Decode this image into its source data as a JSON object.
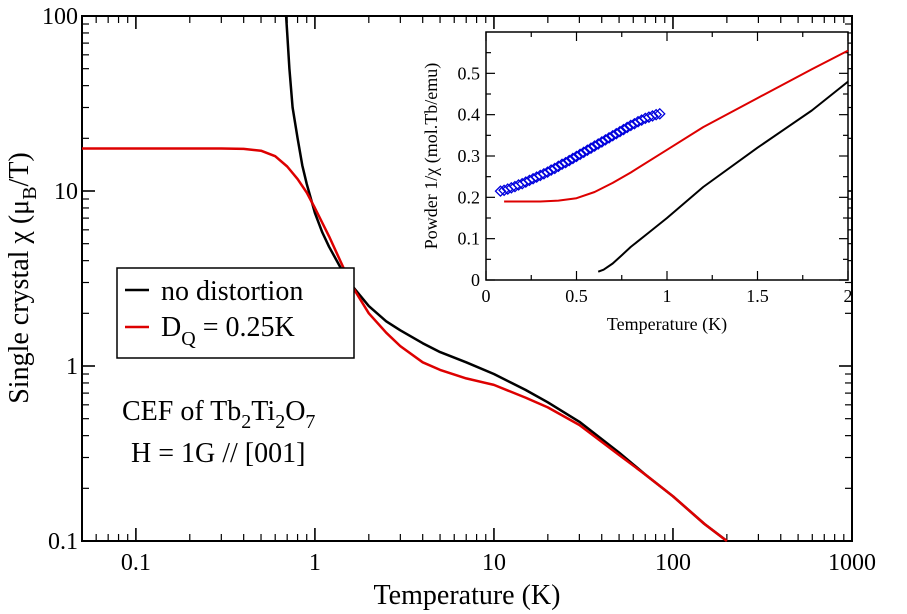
{
  "chart_data": [
    {
      "type": "line",
      "scale": "log-log",
      "xlabel": "Temperature (K)",
      "ylabel_main": "Single crystal χ (μ",
      "ylabel_sub": "B",
      "ylabel_tail": "/T)",
      "xlim": [
        0.05,
        1000
      ],
      "ylim": [
        0.1,
        100
      ],
      "xticks": [
        0.1,
        1,
        10,
        100,
        1000
      ],
      "xtick_labels": [
        "0.1",
        "1",
        "10",
        "100",
        "1000"
      ],
      "yticks": [
        0.1,
        1,
        10,
        100
      ],
      "ytick_labels": [
        "0.1",
        "1",
        "10",
        "100"
      ],
      "legend": {
        "placement": "center-left",
        "entries": [
          {
            "label": "no distortion",
            "color": "#000000"
          },
          {
            "label_main": "D",
            "label_sub": "Q",
            "label_tail": " = 0.25K",
            "color": "#dd0000"
          }
        ]
      },
      "annotations": {
        "line1_a": "CEF of Tb",
        "line1_s1": "2",
        "line1_b": "Ti",
        "line1_s2": "2",
        "line1_c": "O",
        "line1_s3": "7",
        "line2": "H = 1G // [001]"
      },
      "series": [
        {
          "name": "no distortion",
          "color": "#000000",
          "x": [
            0.69,
            0.7,
            0.72,
            0.75,
            0.8,
            0.85,
            0.9,
            1.0,
            1.1,
            1.2,
            1.4,
            1.6,
            2.0,
            2.5,
            3.0,
            4.0,
            5.0,
            7.0,
            10.0,
            15.0,
            20.0,
            30.0,
            50.0,
            70.0,
            100.0,
            150.0,
            200.0
          ],
          "y": [
            100,
            80,
            50,
            30,
            20,
            14,
            11,
            7.5,
            5.8,
            4.8,
            3.6,
            2.9,
            2.2,
            1.8,
            1.6,
            1.35,
            1.2,
            1.05,
            0.9,
            0.73,
            0.62,
            0.48,
            0.32,
            0.24,
            0.18,
            0.125,
            0.1
          ]
        },
        {
          "name": "D_Q = 0.25K",
          "color": "#dd0000",
          "x": [
            0.05,
            0.1,
            0.2,
            0.3,
            0.4,
            0.5,
            0.6,
            0.7,
            0.8,
            0.9,
            1.0,
            1.2,
            1.4,
            1.6,
            2.0,
            2.5,
            3.0,
            4.0,
            5.0,
            7.0,
            10.0,
            15.0,
            20.0,
            30.0,
            50.0,
            70.0,
            100.0,
            150.0,
            200.0
          ],
          "y": [
            17.5,
            17.5,
            17.5,
            17.5,
            17.4,
            17.0,
            15.8,
            13.8,
            11.7,
            9.8,
            8.0,
            5.5,
            3.9,
            2.9,
            2.0,
            1.55,
            1.3,
            1.05,
            0.95,
            0.85,
            0.78,
            0.66,
            0.58,
            0.46,
            0.31,
            0.24,
            0.18,
            0.125,
            0.1
          ]
        }
      ]
    },
    {
      "type": "line",
      "role": "inset",
      "xlabel": "Temperature (K)",
      "ylabel": "Powder 1/χ (mol.Tb/emu)",
      "xlim": [
        0,
        2
      ],
      "ylim": [
        0,
        0.6
      ],
      "xticks": [
        0,
        0.5,
        1,
        1.5,
        2
      ],
      "xtick_labels": [
        "0",
        "0.5",
        "1",
        "1.5",
        "2"
      ],
      "yticks": [
        0,
        0.1,
        0.2,
        0.3,
        0.4,
        0.5
      ],
      "ytick_labels": [
        "0",
        "0.1",
        "0.2",
        "0.3",
        "0.4",
        "0.5"
      ],
      "series": [
        {
          "name": "no distortion",
          "color": "#000000",
          "x": [
            0.62,
            0.65,
            0.7,
            0.75,
            0.8,
            0.9,
            1.0,
            1.2,
            1.5,
            1.8,
            2.0
          ],
          "y": [
            0.02,
            0.025,
            0.04,
            0.06,
            0.08,
            0.115,
            0.15,
            0.225,
            0.32,
            0.41,
            0.48
          ]
        },
        {
          "name": "D_Q = 0.25K",
          "color": "#dd0000",
          "x": [
            0.1,
            0.2,
            0.3,
            0.4,
            0.5,
            0.6,
            0.7,
            0.8,
            1.0,
            1.2,
            1.5,
            1.8,
            2.0
          ],
          "y": [
            0.19,
            0.19,
            0.19,
            0.192,
            0.198,
            0.213,
            0.235,
            0.26,
            0.315,
            0.37,
            0.44,
            0.51,
            0.555
          ]
        },
        {
          "name": "powder data",
          "style": "diamond",
          "color": "#0000dd",
          "x": [
            0.08,
            0.1,
            0.12,
            0.14,
            0.16,
            0.18,
            0.2,
            0.22,
            0.24,
            0.26,
            0.28,
            0.3,
            0.32,
            0.34,
            0.36,
            0.38,
            0.4,
            0.42,
            0.44,
            0.46,
            0.48,
            0.5,
            0.52,
            0.54,
            0.56,
            0.58,
            0.6,
            0.62,
            0.64,
            0.66,
            0.68,
            0.7,
            0.72,
            0.74,
            0.76,
            0.78,
            0.8,
            0.82,
            0.84,
            0.86,
            0.88,
            0.9,
            0.92,
            0.94,
            0.96
          ],
          "y": [
            0.215,
            0.217,
            0.22,
            0.223,
            0.226,
            0.23,
            0.233,
            0.237,
            0.241,
            0.245,
            0.249,
            0.253,
            0.257,
            0.261,
            0.266,
            0.27,
            0.275,
            0.28,
            0.284,
            0.289,
            0.294,
            0.299,
            0.304,
            0.309,
            0.314,
            0.319,
            0.324,
            0.329,
            0.334,
            0.339,
            0.344,
            0.349,
            0.354,
            0.359,
            0.364,
            0.369,
            0.374,
            0.378,
            0.383,
            0.387,
            0.391,
            0.394,
            0.397,
            0.4,
            0.402
          ]
        }
      ]
    }
  ]
}
